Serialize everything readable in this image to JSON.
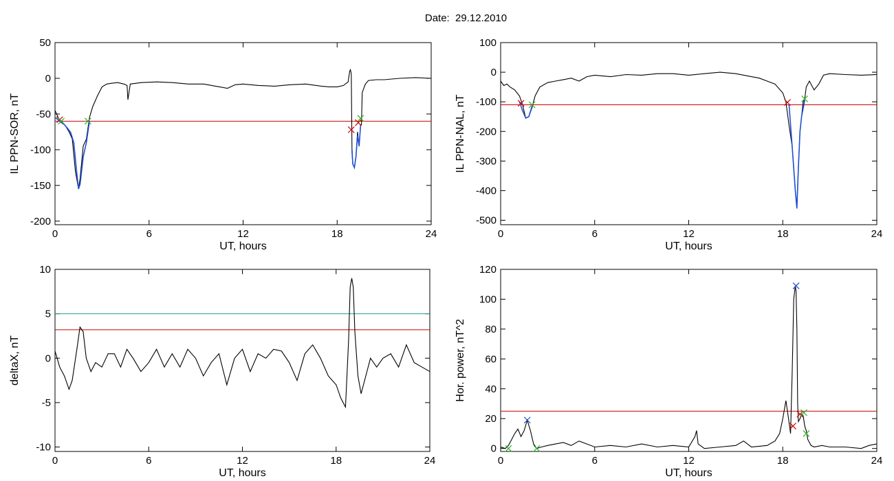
{
  "title": "Date:  29.12.2010",
  "chart_data": [
    {
      "type": "line",
      "xlabel": "UT, hours",
      "ylabel": "IL PPN-SOR, nT",
      "xlim": [
        0,
        24
      ],
      "ylim": [
        -205,
        50
      ],
      "xticks": [
        0,
        6,
        12,
        18,
        24
      ],
      "yticks": [
        50,
        0,
        -50,
        -100,
        -150,
        -200
      ],
      "grid": false,
      "series": [
        {
          "color": "#000000",
          "x": [
            0,
            0.1,
            0.2,
            0.3,
            0.5,
            0.7,
            0.9,
            1.1,
            1.3,
            1.5,
            1.6,
            1.8,
            2.0,
            2.2,
            2.4,
            2.7,
            3.0,
            3.3,
            3.6,
            4.0,
            4.4,
            4.6,
            4.65,
            4.8,
            5.5,
            6.5,
            7.5,
            8.5,
            9.5,
            10.0,
            10.5,
            11.0,
            11.5,
            12.0,
            13.0,
            14.0,
            15.0,
            16.0,
            17.0,
            17.5,
            18.0,
            18.4,
            18.7,
            18.8,
            18.85,
            18.9,
            18.95,
            19.0,
            19.1,
            19.2,
            19.3,
            19.4,
            19.5,
            19.55,
            19.6,
            19.8,
            20.0,
            20.5,
            21.0,
            22.0,
            23.0,
            24.0
          ],
          "y": [
            -45,
            -50,
            -55,
            -58,
            -62,
            -68,
            -75,
            -85,
            -130,
            -155,
            -140,
            -95,
            -85,
            -55,
            -40,
            -25,
            -12,
            -8,
            -7,
            -6,
            -8,
            -10,
            -30,
            -8,
            -6,
            -5,
            -6,
            -8,
            -8,
            -10,
            -12,
            -14,
            -9,
            -8,
            -10,
            -11,
            -9,
            -8,
            -11,
            -12,
            -12,
            -10,
            -5,
            10,
            12,
            6,
            -105,
            -120,
            -125,
            -110,
            -75,
            -95,
            -65,
            -65,
            -20,
            -8,
            -3,
            -2,
            -2,
            0,
            1,
            0
          ]
        },
        {
          "color": "#1f4fd6",
          "x": [
            0,
            0.2,
            0.4,
            0.6,
            0.8,
            1.0,
            1.2,
            1.4,
            1.5,
            1.6,
            1.8,
            2.0,
            2.2
          ],
          "y": [
            -55,
            -58,
            -62,
            -65,
            -70,
            -76,
            -90,
            -135,
            -155,
            -148,
            -110,
            -90,
            -60
          ]
        },
        {
          "color": "#1f4fd6",
          "x": [
            18.95,
            19.0,
            19.1,
            19.2,
            19.3,
            19.4,
            19.5
          ],
          "y": [
            -100,
            -120,
            -125,
            -110,
            -80,
            -95,
            -65
          ]
        }
      ],
      "hlines": [
        {
          "y": -60,
          "color": "#cc0000"
        }
      ],
      "markers": [
        {
          "x": 0.3,
          "y": -58,
          "color": "#cc0000"
        },
        {
          "x": 0.4,
          "y": -60,
          "color": "#2bb02b"
        },
        {
          "x": 2.1,
          "y": -60,
          "color": "#2bb02b"
        },
        {
          "x": 18.9,
          "y": -72,
          "color": "#cc0000"
        },
        {
          "x": 19.35,
          "y": -62,
          "color": "#cc0000"
        },
        {
          "x": 19.5,
          "y": -56,
          "color": "#2bb02b"
        }
      ]
    },
    {
      "type": "line",
      "xlabel": "UT, hours",
      "ylabel": "IL PPN-NAL, nT",
      "xlim": [
        0,
        24
      ],
      "ylim": [
        -515,
        100
      ],
      "xticks": [
        0,
        6,
        12,
        18,
        24
      ],
      "yticks": [
        100,
        0,
        -100,
        -200,
        -300,
        -400,
        -500
      ],
      "grid": false,
      "series": [
        {
          "color": "#000000",
          "x": [
            0,
            0.2,
            0.4,
            0.6,
            0.9,
            1.2,
            1.4,
            1.6,
            1.8,
            2.0,
            2.2,
            2.5,
            3.0,
            3.5,
            4.0,
            4.5,
            5.0,
            5.5,
            6.0,
            7.0,
            8.0,
            9.0,
            10.0,
            11.0,
            12.0,
            13.0,
            14.0,
            15.0,
            16.0,
            16.5,
            17.0,
            17.5,
            18.0,
            18.2,
            18.4,
            18.6,
            18.8,
            18.9,
            19.0,
            19.1,
            19.2,
            19.3,
            19.4,
            19.5,
            19.7,
            20.0,
            20.3,
            20.6,
            21.0,
            22.0,
            23.0,
            24.0
          ],
          "y": [
            -30,
            -45,
            -40,
            -50,
            -60,
            -80,
            -110,
            -155,
            -150,
            -120,
            -80,
            -50,
            -35,
            -30,
            -25,
            -20,
            -30,
            -15,
            -10,
            -15,
            -8,
            -10,
            -5,
            -5,
            -10,
            -5,
            0,
            -5,
            -15,
            -20,
            -30,
            -40,
            -70,
            -100,
            -180,
            -250,
            -400,
            -460,
            -320,
            -200,
            -150,
            -100,
            -90,
            -50,
            -30,
            -60,
            -40,
            -10,
            -5,
            -8,
            -10,
            -8
          ]
        },
        {
          "color": "#1f4fd6",
          "x": [
            1.2,
            1.4,
            1.6,
            1.8,
            2.0
          ],
          "y": [
            -100,
            -130,
            -155,
            -150,
            -115
          ]
        },
        {
          "color": "#1f4fd6",
          "x": [
            18.4,
            18.6,
            18.8,
            18.9,
            19.0,
            19.1,
            19.2,
            19.4
          ],
          "y": [
            -110,
            -250,
            -400,
            -460,
            -320,
            -200,
            -150,
            -95
          ]
        }
      ],
      "hlines": [
        {
          "y": -110,
          "color": "#cc0000"
        }
      ],
      "markers": [
        {
          "x": 1.3,
          "y": -105,
          "color": "#cc0000"
        },
        {
          "x": 2.0,
          "y": -110,
          "color": "#2bb02b"
        },
        {
          "x": 18.3,
          "y": -102,
          "color": "#cc0000"
        },
        {
          "x": 19.4,
          "y": -90,
          "color": "#2bb02b"
        }
      ]
    },
    {
      "type": "line",
      "xlabel": "UT, hours",
      "ylabel": "deltaX, nT",
      "xlim": [
        0,
        24
      ],
      "ylim": [
        -10.5,
        10
      ],
      "xticks": [
        0,
        6,
        12,
        18,
        24
      ],
      "yticks": [
        10,
        5,
        0,
        -5,
        -10
      ],
      "grid": false,
      "series": [
        {
          "color": "#000000",
          "x": [
            0,
            0.3,
            0.6,
            0.9,
            1.1,
            1.4,
            1.6,
            1.8,
            2.0,
            2.3,
            2.6,
            3.0,
            3.4,
            3.8,
            4.2,
            4.6,
            5.0,
            5.5,
            6.0,
            6.5,
            7.0,
            7.5,
            8.0,
            8.5,
            9.0,
            9.5,
            10.0,
            10.5,
            11.0,
            11.5,
            12.0,
            12.5,
            13.0,
            13.5,
            14.0,
            14.5,
            15.0,
            15.5,
            16.0,
            16.5,
            17.0,
            17.5,
            18.0,
            18.3,
            18.6,
            18.8,
            18.9,
            19.0,
            19.1,
            19.2,
            19.4,
            19.6,
            19.9,
            20.2,
            20.6,
            21.0,
            21.5,
            22.0,
            22.5,
            23.0,
            23.5,
            24.0
          ],
          "y": [
            0.8,
            -1,
            -2,
            -3.5,
            -2.5,
            1,
            3.5,
            3,
            0,
            -1.5,
            -0.5,
            -1,
            0.5,
            0.5,
            -1,
            1,
            0,
            -1.5,
            -0.5,
            1,
            -1,
            0.5,
            -1,
            1,
            0,
            -2,
            -0.5,
            0.5,
            -3,
            0,
            1,
            -1.5,
            0.5,
            0,
            1,
            0.8,
            -0.5,
            -2.5,
            0.5,
            1.5,
            0,
            -2,
            -3,
            -4.5,
            -5.5,
            2,
            8,
            9,
            8,
            3,
            -2,
            -4,
            -2,
            0,
            -1,
            0,
            0.5,
            -1,
            1.5,
            -0.5,
            -1,
            -1.5
          ]
        }
      ],
      "hlines": [
        {
          "y": 5,
          "color": "#1f9f8f"
        },
        {
          "y": 3.2,
          "color": "#cc0000"
        }
      ],
      "markers": []
    },
    {
      "type": "line",
      "xlabel": "UT, hours",
      "ylabel": "Hor. power, nT^2",
      "xlim": [
        0,
        24
      ],
      "ylim": [
        -2,
        120
      ],
      "xticks": [
        0,
        6,
        12,
        18,
        24
      ],
      "yticks": [
        0,
        20,
        40,
        60,
        80,
        100,
        120
      ],
      "grid": false,
      "series": [
        {
          "color": "#000000",
          "x": [
            0,
            0.3,
            0.5,
            0.7,
            0.9,
            1.1,
            1.3,
            1.5,
            1.7,
            1.9,
            2.1,
            2.3,
            2.6,
            3.0,
            3.5,
            4.0,
            4.5,
            5.0,
            5.5,
            6.0,
            7.0,
            8.0,
            9.0,
            10.0,
            11.0,
            12.0,
            12.4,
            12.5,
            12.6,
            13.0,
            14.0,
            15.0,
            15.5,
            16.0,
            17.0,
            17.5,
            17.8,
            18.0,
            18.2,
            18.3,
            18.5,
            18.6,
            18.7,
            18.8,
            18.85,
            18.9,
            18.95,
            19.0,
            19.1,
            19.2,
            19.3,
            19.4,
            19.5,
            19.6,
            19.8,
            20.0,
            20.5,
            21.0,
            22.0,
            23.0,
            23.5,
            24.0
          ],
          "y": [
            1,
            0,
            2,
            6,
            10,
            13,
            8,
            12,
            19,
            12,
            3,
            0,
            1,
            2,
            3,
            4,
            2,
            5,
            3,
            1,
            2,
            1,
            3,
            1,
            2,
            1,
            8,
            12,
            3,
            0,
            1,
            2,
            5,
            1,
            2,
            5,
            10,
            20,
            32,
            25,
            10,
            50,
            100,
            109,
            105,
            80,
            30,
            18,
            20,
            23,
            22,
            15,
            12,
            6,
            2,
            1,
            2,
            1,
            1,
            0,
            2,
            3
          ]
        }
      ],
      "hlines": [
        {
          "y": 25,
          "color": "#cc0000"
        }
      ],
      "markers": [
        {
          "x": 0.5,
          "y": 0,
          "color": "#2bb02b"
        },
        {
          "x": 1.7,
          "y": 19,
          "color": "#1f4fd6"
        },
        {
          "x": 2.3,
          "y": 0,
          "color": "#2bb02b"
        },
        {
          "x": 18.65,
          "y": 15,
          "color": "#cc0000"
        },
        {
          "x": 18.85,
          "y": 109,
          "color": "#1f4fd6"
        },
        {
          "x": 19.1,
          "y": 23,
          "color": "#cc0000"
        },
        {
          "x": 19.35,
          "y": 24,
          "color": "#2bb02b"
        },
        {
          "x": 19.5,
          "y": 10,
          "color": "#2bb02b"
        }
      ]
    }
  ]
}
